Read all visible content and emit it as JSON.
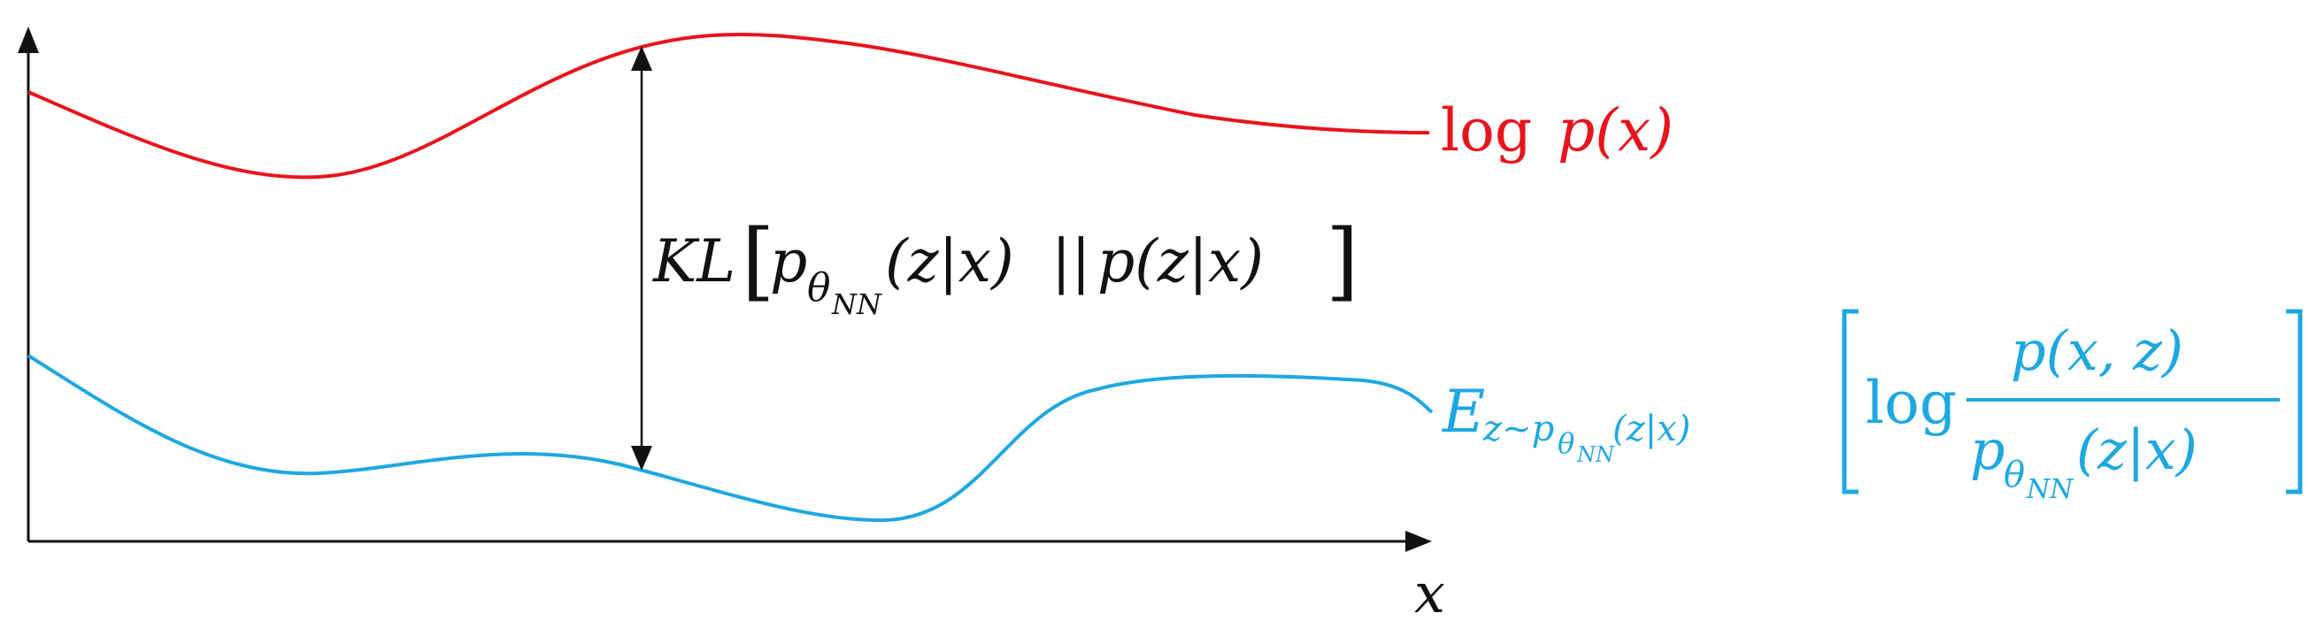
{
  "axes": {
    "x_label": "x"
  },
  "curves": {
    "upper": {
      "label_log": "log",
      "label_body": "p(x)",
      "color": "#e8141c"
    },
    "lower": {
      "label_E": "E",
      "label_sub_z": "z~p",
      "label_sub_theta": "θ",
      "label_sub_NN": "NN",
      "label_sub_cond": "(z|x)",
      "label_log": "log",
      "frac_num": "p(x, z)",
      "frac_den_p": "p",
      "frac_den_theta": "θ",
      "frac_den_NN": "NN",
      "frac_den_cond": "(z|x)",
      "color": "#1ea8e0"
    }
  },
  "gap_annotation": {
    "prefix": "KL",
    "p1": "p",
    "p1_sub_theta": "θ",
    "p1_sub_NN": "NN",
    "p1_cond": "(z|x)",
    "separator": "||",
    "p2": "p(z|x)",
    "color": "#111111"
  }
}
